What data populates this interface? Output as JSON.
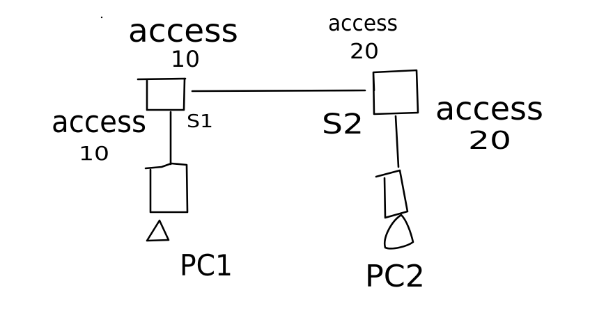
{
  "diagram": {
    "background_color": "#ffffff",
    "ink_color": "#000000",
    "switches": [
      {
        "id": "s1",
        "name": "S1",
        "name_label": "S1",
        "uplink_port": {
          "mode": "access",
          "vlan": "10"
        },
        "host_port": {
          "mode": "access",
          "vlan": "10"
        }
      },
      {
        "id": "s2",
        "name": "S2",
        "name_label": "S2",
        "uplink_port": {
          "mode": "access",
          "vlan": "20"
        },
        "host_port": {
          "mode": "access",
          "vlan": "20"
        }
      }
    ],
    "hosts": [
      {
        "id": "pc1",
        "label": "PC1",
        "attached_to": "s1"
      },
      {
        "id": "pc2",
        "label": "PC2",
        "attached_to": "s2"
      }
    ],
    "links": [
      {
        "from": "s1",
        "to": "s2",
        "type": "trunk-line"
      },
      {
        "from": "s1",
        "to": "pc1",
        "type": "access-line"
      },
      {
        "from": "s2",
        "to": "pc2",
        "type": "access-line"
      }
    ]
  }
}
